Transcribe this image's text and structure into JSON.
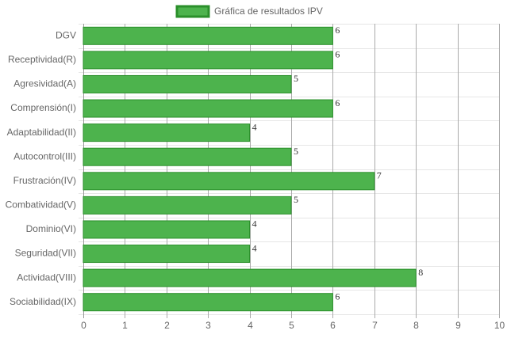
{
  "chart_data": {
    "type": "bar",
    "horizontal": true,
    "legend": "Gráfica de resultados IPV",
    "legend_position": "top",
    "categories": [
      "DGV",
      "Receptividad(R)",
      "Agresividad(A)",
      "Comprensión(I)",
      "Adaptabilidad(II)",
      "Autocontrol(III)",
      "Frustración(IV)",
      "Combatividad(V)",
      "Dominio(VI)",
      "Seguridad(VII)",
      "Actividad(VIII)",
      "Sociabilidad(IX)"
    ],
    "values": [
      6,
      6,
      5,
      6,
      4,
      5,
      7,
      5,
      4,
      4,
      8,
      6
    ],
    "color": "#4db34d",
    "border_color": "#2a8f2a",
    "xlim": [
      0,
      10
    ],
    "xticks": [
      0,
      1,
      2,
      3,
      4,
      5,
      6,
      7,
      8,
      9,
      10
    ],
    "grid": true,
    "data_labels": true
  }
}
